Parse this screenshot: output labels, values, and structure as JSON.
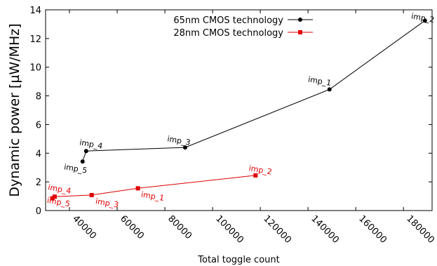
{
  "chart_data": {
    "type": "line",
    "xlabel": "Total toggle count",
    "ylabel": "Dynamic power [µW/MHz]",
    "xlim": [
      30000,
      192000
    ],
    "ylim": [
      0,
      14
    ],
    "x_ticks": [
      40000,
      60000,
      80000,
      100000,
      120000,
      140000,
      160000,
      180000
    ],
    "y_ticks": [
      0,
      2,
      4,
      6,
      8,
      10,
      12,
      14
    ],
    "grid": false,
    "legend_position": "top-right",
    "series": [
      {
        "name": "65nm CMOS technology",
        "color": "#000000",
        "marker": "circle",
        "points": [
          {
            "label": "imp_5",
            "x": 45500,
            "y": 3.42
          },
          {
            "label": "imp_4",
            "x": 47000,
            "y": 4.15
          },
          {
            "label": "imp_3",
            "x": 88500,
            "y": 4.4
          },
          {
            "label": "imp_1",
            "x": 149000,
            "y": 8.45
          },
          {
            "label": "imp_2",
            "x": 189000,
            "y": 13.25
          }
        ]
      },
      {
        "name": "28nm CMOS technology",
        "color": "#e00000",
        "marker": "square",
        "points": [
          {
            "label": "imp_5",
            "x": 32800,
            "y": 0.85
          },
          {
            "label": "imp_4",
            "x": 33800,
            "y": 0.97
          },
          {
            "label": "imp_3",
            "x": 49300,
            "y": 1.08
          },
          {
            "label": "imp_1",
            "x": 68700,
            "y": 1.55
          },
          {
            "label": "imp_2",
            "x": 118000,
            "y": 2.45
          }
        ]
      }
    ]
  }
}
